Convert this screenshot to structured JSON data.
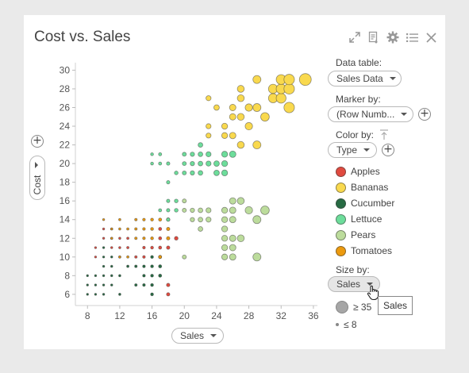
{
  "title": "Cost vs. Sales",
  "toolbar": {
    "icons": [
      "expand-icon",
      "export-icon",
      "gear-icon",
      "list-icon",
      "close-icon"
    ]
  },
  "x_selector": {
    "label": "Sales"
  },
  "y_selector": {
    "label": "Cost"
  },
  "side_panel": {
    "data_table_label": "Data table:",
    "data_table_value": "Sales Data",
    "marker_by_label": "Marker by:",
    "marker_by_value": "(Row Numb...",
    "color_by_label": "Color by:",
    "color_by_value": "Type",
    "size_by_label": "Size by:",
    "size_by_value": "Sales",
    "size_legend_max": "≥ 35",
    "size_legend_min": "≤ 8"
  },
  "tooltip": "Sales",
  "colors": {
    "Apples": "#e04a3f",
    "Bananas": "#f9d94e",
    "Cucumber": "#276b43",
    "Lettuce": "#6ddd9b",
    "Pears": "#bcdc9c",
    "Tomatoes": "#ec9a0e"
  },
  "chart_data": {
    "type": "scatter",
    "title": "Cost vs. Sales",
    "xlabel": "Sales",
    "ylabel": "Cost",
    "xlim": [
      6.5,
      36.5
    ],
    "ylim": [
      4.8,
      30.8
    ],
    "xticks": [
      8,
      12,
      16,
      20,
      24,
      28,
      32,
      36
    ],
    "yticks": [
      6,
      8,
      10,
      12,
      14,
      16,
      18,
      20,
      22,
      24,
      26,
      28,
      30
    ],
    "grid": false,
    "legend_position": "right",
    "size_by": "Sales",
    "series": [
      {
        "name": "Cucumber",
        "points": [
          [
            8,
            6
          ],
          [
            9,
            6
          ],
          [
            10,
            6
          ],
          [
            12,
            6
          ],
          [
            16,
            6
          ],
          [
            8,
            7
          ],
          [
            9,
            7
          ],
          [
            10,
            7
          ],
          [
            11,
            7
          ],
          [
            14,
            7
          ],
          [
            15,
            7
          ],
          [
            16,
            7
          ],
          [
            8,
            8
          ],
          [
            9,
            8
          ],
          [
            10,
            8
          ],
          [
            11,
            8
          ],
          [
            12,
            8
          ],
          [
            15,
            8
          ],
          [
            16,
            8
          ],
          [
            17,
            8
          ],
          [
            10,
            9
          ],
          [
            11,
            9
          ],
          [
            13,
            9
          ],
          [
            14,
            9
          ],
          [
            15,
            9
          ],
          [
            16,
            9
          ],
          [
            17,
            9
          ],
          [
            10,
            10
          ],
          [
            11,
            10
          ],
          [
            16,
            10
          ],
          [
            17,
            10
          ],
          [
            10,
            11
          ]
        ]
      },
      {
        "name": "Apples",
        "points": [
          [
            18,
            6
          ],
          [
            18,
            7
          ],
          [
            9,
            10
          ],
          [
            12,
            10
          ],
          [
            14,
            10
          ],
          [
            15,
            10
          ],
          [
            9,
            11
          ],
          [
            11,
            11
          ],
          [
            12,
            11
          ],
          [
            13,
            11
          ],
          [
            15,
            11
          ],
          [
            16,
            11
          ],
          [
            17,
            11
          ],
          [
            18,
            11
          ],
          [
            10,
            12
          ],
          [
            11,
            12
          ],
          [
            12,
            12
          ],
          [
            13,
            12
          ],
          [
            17,
            12
          ],
          [
            19,
            12
          ],
          [
            10,
            13
          ],
          [
            11,
            13
          ],
          [
            17,
            13
          ]
        ]
      },
      {
        "name": "Tomatoes",
        "points": [
          [
            12,
            10
          ],
          [
            13,
            10
          ],
          [
            17,
            10
          ],
          [
            11,
            12
          ],
          [
            14,
            12
          ],
          [
            15,
            12
          ],
          [
            16,
            12
          ],
          [
            18,
            12
          ],
          [
            11,
            13
          ],
          [
            12,
            13
          ],
          [
            13,
            13
          ],
          [
            14,
            13
          ],
          [
            15,
            13
          ],
          [
            16,
            13
          ],
          [
            18,
            13
          ],
          [
            10,
            14
          ],
          [
            12,
            14
          ],
          [
            14,
            14
          ],
          [
            15,
            14
          ],
          [
            16,
            14
          ],
          [
            17,
            14
          ],
          [
            18,
            14
          ]
        ]
      },
      {
        "name": "Lettuce",
        "points": [
          [
            18,
            14
          ],
          [
            17,
            15
          ],
          [
            18,
            15
          ],
          [
            19,
            15
          ],
          [
            18,
            16
          ],
          [
            19,
            16
          ],
          [
            18,
            18
          ],
          [
            19,
            19
          ],
          [
            20,
            19
          ],
          [
            21,
            19
          ],
          [
            22,
            19
          ],
          [
            24,
            19
          ],
          [
            25,
            19
          ],
          [
            16,
            20
          ],
          [
            17,
            20
          ],
          [
            18,
            20
          ],
          [
            20,
            20
          ],
          [
            21,
            20
          ],
          [
            22,
            20
          ],
          [
            23,
            20
          ],
          [
            24,
            20
          ],
          [
            25,
            20
          ],
          [
            16,
            21
          ],
          [
            17,
            21
          ],
          [
            20,
            21
          ],
          [
            21,
            21
          ],
          [
            22,
            21
          ],
          [
            23,
            21
          ],
          [
            25,
            21
          ],
          [
            26,
            21
          ],
          [
            22,
            22
          ]
        ]
      },
      {
        "name": "Pears",
        "points": [
          [
            20,
            10
          ],
          [
            25,
            10
          ],
          [
            26,
            10
          ],
          [
            29,
            10
          ],
          [
            25,
            11
          ],
          [
            26,
            11
          ],
          [
            25,
            12
          ],
          [
            26,
            12
          ],
          [
            27,
            12
          ],
          [
            22,
            13
          ],
          [
            25,
            13
          ],
          [
            21,
            14
          ],
          [
            22,
            14
          ],
          [
            23,
            14
          ],
          [
            25,
            14
          ],
          [
            26,
            14
          ],
          [
            29,
            14
          ],
          [
            20,
            15
          ],
          [
            21,
            15
          ],
          [
            22,
            15
          ],
          [
            23,
            15
          ],
          [
            25,
            15
          ],
          [
            26,
            15
          ],
          [
            28,
            15
          ],
          [
            30,
            15
          ],
          [
            20,
            16
          ],
          [
            26,
            16
          ],
          [
            27,
            16
          ]
        ]
      },
      {
        "name": "Bananas",
        "points": [
          [
            27,
            22
          ],
          [
            29,
            22
          ],
          [
            23,
            23
          ],
          [
            25,
            23
          ],
          [
            26,
            23
          ],
          [
            23,
            24
          ],
          [
            25,
            24
          ],
          [
            28,
            24
          ],
          [
            26,
            25
          ],
          [
            27,
            25
          ],
          [
            30,
            25
          ],
          [
            24,
            26
          ],
          [
            26,
            26
          ],
          [
            28,
            26
          ],
          [
            29,
            26
          ],
          [
            31,
            27
          ],
          [
            32,
            27
          ],
          [
            23,
            27
          ],
          [
            33,
            26
          ],
          [
            27,
            27
          ],
          [
            27,
            28
          ],
          [
            31,
            28
          ],
          [
            32,
            28
          ],
          [
            33,
            28
          ],
          [
            29,
            29
          ],
          [
            32,
            29
          ],
          [
            33,
            29
          ],
          [
            35,
            29
          ]
        ]
      }
    ]
  }
}
